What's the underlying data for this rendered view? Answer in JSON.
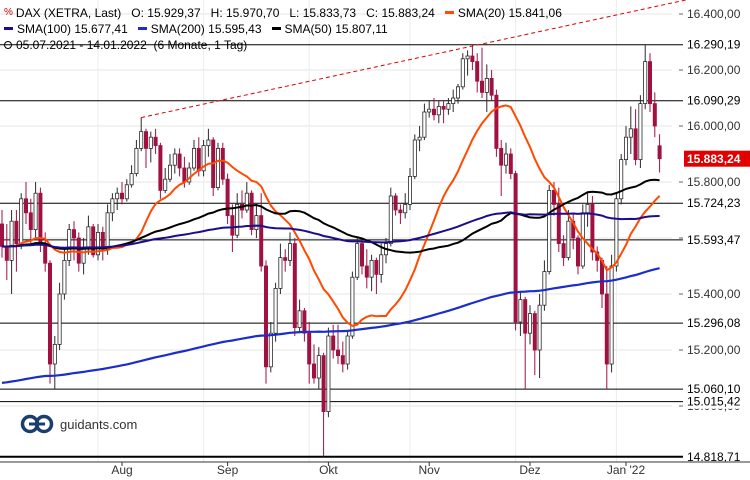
{
  "legend": {
    "instrument": "DAX (XETRA, Last)",
    "open": "O: 15.929,37",
    "high": "H: 15.970,70",
    "low": "L: 15.833,73",
    "close": "C: 15.883,24",
    "sma20_label": "SMA(20)",
    "sma20_value": "15.841,06",
    "sma100_label": "SMA(100)",
    "sma100_value": "15.677,41",
    "sma200_label": "SMA(200)",
    "sma200_value": "15.595,43",
    "sma50_label": "SMA(50)",
    "sma50_value": "15.807,11",
    "period": "05.07.2021 - 14.01.2022",
    "range": "(6 Monate, 1 Tag)"
  },
  "brand": {
    "name": "guidants.com"
  },
  "colors": {
    "sma20": "#ff4a00",
    "sma50": "#000000",
    "sma100": "#1c0d8c",
    "sma200": "#1a2ecc",
    "up_candle": "#2a2a2a",
    "down_candle": "#a01040",
    "last_price_badge": "#e00000",
    "trendline": "#e00000"
  },
  "chart_data": {
    "type": "candlestick",
    "title": "DAX (XETRA, Last)",
    "ylim": [
      14800,
      16450
    ],
    "y_ticks": [
      "16.400,00",
      "16.200,00",
      "16.000,00",
      "15.800,00",
      "15.600,00",
      "15.400,00",
      "15.200,00",
      "15.000,00"
    ],
    "x_ticks": [
      "Aug",
      "Sep",
      "Okt",
      "Nov",
      "Dez",
      "Jan '22"
    ],
    "horizontal_levels": [
      {
        "label": "16.290,19",
        "value": 16290.19
      },
      {
        "label": "16.090,29",
        "value": 16090.29
      },
      {
        "label": "15.724,23",
        "value": 15724.23
      },
      {
        "label": "15.593,47",
        "value": 15593.47
      },
      {
        "label": "15.296,08",
        "value": 15296.08
      },
      {
        "label": "15.060,10",
        "value": 15060.1
      },
      {
        "label": "15.015,42",
        "value": 15015.42
      },
      {
        "label": "14.818,71",
        "value": 14818.71
      }
    ],
    "last_price": {
      "label": "15.883,24",
      "value": 15883.24
    },
    "trendline": {
      "from": {
        "date": "2021-08-13",
        "value": 16030
      },
      "to": {
        "date": "2022-01-14",
        "value": 16450
      }
    },
    "candles": [
      {
        "date": "2021-07-05",
        "o": 15650,
        "h": 15700,
        "l": 15530,
        "c": 15570
      },
      {
        "date": "2021-07-06",
        "o": 15570,
        "h": 15650,
        "l": 15450,
        "c": 15520
      },
      {
        "date": "2021-07-07",
        "o": 15520,
        "h": 15700,
        "l": 15400,
        "c": 15660
      },
      {
        "date": "2021-07-08",
        "o": 15660,
        "h": 15700,
        "l": 15480,
        "c": 15580
      },
      {
        "date": "2021-07-09",
        "o": 15580,
        "h": 15760,
        "l": 15560,
        "c": 15740
      },
      {
        "date": "2021-07-12",
        "o": 15740,
        "h": 15800,
        "l": 15650,
        "c": 15690
      },
      {
        "date": "2021-07-13",
        "o": 15690,
        "h": 15740,
        "l": 15580,
        "c": 15630
      },
      {
        "date": "2021-07-14",
        "o": 15630,
        "h": 15800,
        "l": 15600,
        "c": 15760
      },
      {
        "date": "2021-07-15",
        "o": 15760,
        "h": 15780,
        "l": 15550,
        "c": 15580
      },
      {
        "date": "2021-07-16",
        "o": 15580,
        "h": 15620,
        "l": 15480,
        "c": 15510
      },
      {
        "date": "2021-07-19",
        "o": 15510,
        "h": 15520,
        "l": 15080,
        "c": 15150
      },
      {
        "date": "2021-07-20",
        "o": 15150,
        "h": 15250,
        "l": 15060,
        "c": 15220
      },
      {
        "date": "2021-07-21",
        "o": 15220,
        "h": 15440,
        "l": 15200,
        "c": 15400
      },
      {
        "date": "2021-07-22",
        "o": 15400,
        "h": 15560,
        "l": 15380,
        "c": 15520
      },
      {
        "date": "2021-07-23",
        "o": 15520,
        "h": 15650,
        "l": 15500,
        "c": 15630
      },
      {
        "date": "2021-07-26",
        "o": 15630,
        "h": 15660,
        "l": 15520,
        "c": 15600
      },
      {
        "date": "2021-07-27",
        "o": 15600,
        "h": 15620,
        "l": 15480,
        "c": 15510
      },
      {
        "date": "2021-07-28",
        "o": 15510,
        "h": 15600,
        "l": 15470,
        "c": 15560
      },
      {
        "date": "2021-07-29",
        "o": 15560,
        "h": 15680,
        "l": 15540,
        "c": 15640
      },
      {
        "date": "2021-07-30",
        "o": 15640,
        "h": 15650,
        "l": 15530,
        "c": 15540
      },
      {
        "date": "2021-08-02",
        "o": 15540,
        "h": 15650,
        "l": 15520,
        "c": 15620
      },
      {
        "date": "2021-08-03",
        "o": 15620,
        "h": 15640,
        "l": 15520,
        "c": 15560
      },
      {
        "date": "2021-08-04",
        "o": 15560,
        "h": 15720,
        "l": 15540,
        "c": 15690
      },
      {
        "date": "2021-08-05",
        "o": 15690,
        "h": 15760,
        "l": 15660,
        "c": 15740
      },
      {
        "date": "2021-08-06",
        "o": 15740,
        "h": 15780,
        "l": 15700,
        "c": 15760
      },
      {
        "date": "2021-08-09",
        "o": 15760,
        "h": 15800,
        "l": 15720,
        "c": 15740
      },
      {
        "date": "2021-08-10",
        "o": 15740,
        "h": 15810,
        "l": 15730,
        "c": 15790
      },
      {
        "date": "2021-08-11",
        "o": 15790,
        "h": 15860,
        "l": 15780,
        "c": 15830
      },
      {
        "date": "2021-08-12",
        "o": 15830,
        "h": 15950,
        "l": 15820,
        "c": 15920
      },
      {
        "date": "2021-08-13",
        "o": 15920,
        "h": 16030,
        "l": 15910,
        "c": 15980
      },
      {
        "date": "2021-08-16",
        "o": 15980,
        "h": 15990,
        "l": 15850,
        "c": 15920
      },
      {
        "date": "2021-08-17",
        "o": 15920,
        "h": 15980,
        "l": 15870,
        "c": 15960
      },
      {
        "date": "2021-08-18",
        "o": 15960,
        "h": 15990,
        "l": 15900,
        "c": 15930
      },
      {
        "date": "2021-08-19",
        "o": 15930,
        "h": 15940,
        "l": 15740,
        "c": 15770
      },
      {
        "date": "2021-08-20",
        "o": 15770,
        "h": 15850,
        "l": 15760,
        "c": 15810
      },
      {
        "date": "2021-08-23",
        "o": 15810,
        "h": 15900,
        "l": 15800,
        "c": 15860
      },
      {
        "date": "2021-08-24",
        "o": 15860,
        "h": 15920,
        "l": 15830,
        "c": 15900
      },
      {
        "date": "2021-08-25",
        "o": 15900,
        "h": 15920,
        "l": 15820,
        "c": 15850
      },
      {
        "date": "2021-08-26",
        "o": 15850,
        "h": 15890,
        "l": 15780,
        "c": 15800
      },
      {
        "date": "2021-08-27",
        "o": 15800,
        "h": 15870,
        "l": 15790,
        "c": 15850
      },
      {
        "date": "2021-08-30",
        "o": 15850,
        "h": 15950,
        "l": 15840,
        "c": 15920
      },
      {
        "date": "2021-08-31",
        "o": 15920,
        "h": 15960,
        "l": 15820,
        "c": 15840
      },
      {
        "date": "2021-09-01",
        "o": 15840,
        "h": 15950,
        "l": 15820,
        "c": 15930
      },
      {
        "date": "2021-09-02",
        "o": 15930,
        "h": 15990,
        "l": 15890,
        "c": 15950
      },
      {
        "date": "2021-09-03",
        "o": 15950,
        "h": 15960,
        "l": 15750,
        "c": 15780
      },
      {
        "date": "2021-09-06",
        "o": 15780,
        "h": 15940,
        "l": 15770,
        "c": 15920
      },
      {
        "date": "2021-09-07",
        "o": 15920,
        "h": 15940,
        "l": 15790,
        "c": 15810
      },
      {
        "date": "2021-09-08",
        "o": 15810,
        "h": 15830,
        "l": 15650,
        "c": 15680
      },
      {
        "date": "2021-09-09",
        "o": 15680,
        "h": 15720,
        "l": 15550,
        "c": 15610
      },
      {
        "date": "2021-09-10",
        "o": 15610,
        "h": 15760,
        "l": 15600,
        "c": 15720
      },
      {
        "date": "2021-09-13",
        "o": 15720,
        "h": 15770,
        "l": 15670,
        "c": 15700
      },
      {
        "date": "2021-09-14",
        "o": 15700,
        "h": 15800,
        "l": 15690,
        "c": 15760
      },
      {
        "date": "2021-09-15",
        "o": 15760,
        "h": 15770,
        "l": 15610,
        "c": 15630
      },
      {
        "date": "2021-09-16",
        "o": 15630,
        "h": 15720,
        "l": 15600,
        "c": 15680
      },
      {
        "date": "2021-09-17",
        "o": 15680,
        "h": 15760,
        "l": 15480,
        "c": 15500
      },
      {
        "date": "2021-09-20",
        "o": 15500,
        "h": 15520,
        "l": 15080,
        "c": 15140
      },
      {
        "date": "2021-09-21",
        "o": 15140,
        "h": 15300,
        "l": 15120,
        "c": 15260
      },
      {
        "date": "2021-09-22",
        "o": 15260,
        "h": 15440,
        "l": 15230,
        "c": 15420
      },
      {
        "date": "2021-09-23",
        "o": 15420,
        "h": 15580,
        "l": 15400,
        "c": 15530
      },
      {
        "date": "2021-09-24",
        "o": 15530,
        "h": 15560,
        "l": 15480,
        "c": 15520
      },
      {
        "date": "2021-09-27",
        "o": 15520,
        "h": 15620,
        "l": 15500,
        "c": 15580
      },
      {
        "date": "2021-09-28",
        "o": 15580,
        "h": 15600,
        "l": 15250,
        "c": 15280
      },
      {
        "date": "2021-09-29",
        "o": 15280,
        "h": 15380,
        "l": 15260,
        "c": 15340
      },
      {
        "date": "2021-09-30",
        "o": 15340,
        "h": 15350,
        "l": 15230,
        "c": 15260
      },
      {
        "date": "2021-10-01",
        "o": 15260,
        "h": 15300,
        "l": 15080,
        "c": 15150
      },
      {
        "date": "2021-10-04",
        "o": 15150,
        "h": 15220,
        "l": 15080,
        "c": 15100
      },
      {
        "date": "2021-10-05",
        "o": 15100,
        "h": 15210,
        "l": 15060,
        "c": 15180
      },
      {
        "date": "2021-10-06",
        "o": 15180,
        "h": 15190,
        "l": 14820,
        "c": 14980
      },
      {
        "date": "2021-10-07",
        "o": 14980,
        "h": 15280,
        "l": 14960,
        "c": 15250
      },
      {
        "date": "2021-10-08",
        "o": 15250,
        "h": 15290,
        "l": 15170,
        "c": 15200
      },
      {
        "date": "2021-10-11",
        "o": 15200,
        "h": 15290,
        "l": 15150,
        "c": 15180
      },
      {
        "date": "2021-10-12",
        "o": 15180,
        "h": 15230,
        "l": 15120,
        "c": 15150
      },
      {
        "date": "2021-10-13",
        "o": 15150,
        "h": 15270,
        "l": 15130,
        "c": 15250
      },
      {
        "date": "2021-10-14",
        "o": 15250,
        "h": 15480,
        "l": 15240,
        "c": 15460
      },
      {
        "date": "2021-10-15",
        "o": 15460,
        "h": 15600,
        "l": 15450,
        "c": 15580
      },
      {
        "date": "2021-10-18",
        "o": 15580,
        "h": 15600,
        "l": 15470,
        "c": 15500
      },
      {
        "date": "2021-10-19",
        "o": 15500,
        "h": 15560,
        "l": 15420,
        "c": 15460
      },
      {
        "date": "2021-10-20",
        "o": 15460,
        "h": 15540,
        "l": 15410,
        "c": 15520
      },
      {
        "date": "2021-10-21",
        "o": 15520,
        "h": 15530,
        "l": 15400,
        "c": 15470
      },
      {
        "date": "2021-10-22",
        "o": 15470,
        "h": 15580,
        "l": 15440,
        "c": 15540
      },
      {
        "date": "2021-10-25",
        "o": 15540,
        "h": 15600,
        "l": 15510,
        "c": 15580
      },
      {
        "date": "2021-10-26",
        "o": 15580,
        "h": 15780,
        "l": 15570,
        "c": 15750
      },
      {
        "date": "2021-10-27",
        "o": 15750,
        "h": 15760,
        "l": 15680,
        "c": 15700
      },
      {
        "date": "2021-10-28",
        "o": 15700,
        "h": 15720,
        "l": 15650,
        "c": 15690
      },
      {
        "date": "2021-10-29",
        "o": 15690,
        "h": 15760,
        "l": 15670,
        "c": 15720
      },
      {
        "date": "2021-11-01",
        "o": 15720,
        "h": 15850,
        "l": 15700,
        "c": 15820
      },
      {
        "date": "2021-11-02",
        "o": 15820,
        "h": 15970,
        "l": 15810,
        "c": 15950
      },
      {
        "date": "2021-11-03",
        "o": 15950,
        "h": 16000,
        "l": 15910,
        "c": 15960
      },
      {
        "date": "2021-11-04",
        "o": 15960,
        "h": 16080,
        "l": 15950,
        "c": 16050
      },
      {
        "date": "2021-11-05",
        "o": 16050,
        "h": 16090,
        "l": 16030,
        "c": 16060
      },
      {
        "date": "2021-11-08",
        "o": 16060,
        "h": 16100,
        "l": 16020,
        "c": 16040
      },
      {
        "date": "2021-11-09",
        "o": 16040,
        "h": 16090,
        "l": 16010,
        "c": 16070
      },
      {
        "date": "2021-11-10",
        "o": 16070,
        "h": 16090,
        "l": 16010,
        "c": 16060
      },
      {
        "date": "2021-11-11",
        "o": 16060,
        "h": 16100,
        "l": 16040,
        "c": 16080
      },
      {
        "date": "2021-11-12",
        "o": 16080,
        "h": 16130,
        "l": 16050,
        "c": 16100
      },
      {
        "date": "2021-11-15",
        "o": 16100,
        "h": 16150,
        "l": 16080,
        "c": 16140
      },
      {
        "date": "2021-11-16",
        "o": 16140,
        "h": 16260,
        "l": 16130,
        "c": 16240
      },
      {
        "date": "2021-11-17",
        "o": 16240,
        "h": 16270,
        "l": 16180,
        "c": 16250
      },
      {
        "date": "2021-11-18",
        "o": 16250,
        "h": 16290,
        "l": 16200,
        "c": 16230
      },
      {
        "date": "2021-11-19",
        "o": 16230,
        "h": 16260,
        "l": 16120,
        "c": 16160
      },
      {
        "date": "2021-11-22",
        "o": 16160,
        "h": 16280,
        "l": 16100,
        "c": 16120
      },
      {
        "date": "2021-11-23",
        "o": 16120,
        "h": 16220,
        "l": 16050,
        "c": 16170
      },
      {
        "date": "2021-11-24",
        "o": 16170,
        "h": 16200,
        "l": 16090,
        "c": 16110
      },
      {
        "date": "2021-11-25",
        "o": 16110,
        "h": 16130,
        "l": 15890,
        "c": 15920
      },
      {
        "date": "2021-11-26",
        "o": 15920,
        "h": 15950,
        "l": 15750,
        "c": 15860
      },
      {
        "date": "2021-11-29",
        "o": 15860,
        "h": 15940,
        "l": 15830,
        "c": 15900
      },
      {
        "date": "2021-11-30",
        "o": 15900,
        "h": 15920,
        "l": 15810,
        "c": 15830
      },
      {
        "date": "2021-12-01",
        "o": 15830,
        "h": 15840,
        "l": 15270,
        "c": 15300
      },
      {
        "date": "2021-12-02",
        "o": 15300,
        "h": 15410,
        "l": 15250,
        "c": 15380
      },
      {
        "date": "2021-12-03",
        "o": 15380,
        "h": 15390,
        "l": 15060,
        "c": 15260
      },
      {
        "date": "2021-12-06",
        "o": 15260,
        "h": 15360,
        "l": 15220,
        "c": 15330
      },
      {
        "date": "2021-12-07",
        "o": 15330,
        "h": 15340,
        "l": 15110,
        "c": 15200
      },
      {
        "date": "2021-12-08",
        "o": 15200,
        "h": 15400,
        "l": 15100,
        "c": 15360
      },
      {
        "date": "2021-12-09",
        "o": 15360,
        "h": 15520,
        "l": 15340,
        "c": 15480
      },
      {
        "date": "2021-12-10",
        "o": 15480,
        "h": 15790,
        "l": 15470,
        "c": 15770
      },
      {
        "date": "2021-12-13",
        "o": 15770,
        "h": 15800,
        "l": 15680,
        "c": 15720
      },
      {
        "date": "2021-12-14",
        "o": 15720,
        "h": 15780,
        "l": 15550,
        "c": 15580
      },
      {
        "date": "2021-12-15",
        "o": 15580,
        "h": 15610,
        "l": 15500,
        "c": 15530
      },
      {
        "date": "2021-12-16",
        "o": 15530,
        "h": 15700,
        "l": 15520,
        "c": 15660
      },
      {
        "date": "2021-12-17",
        "o": 15660,
        "h": 15690,
        "l": 15560,
        "c": 15600
      },
      {
        "date": "2021-12-20",
        "o": 15600,
        "h": 15610,
        "l": 15470,
        "c": 15500
      },
      {
        "date": "2021-12-21",
        "o": 15500,
        "h": 15720,
        "l": 15490,
        "c": 15690
      },
      {
        "date": "2021-12-22",
        "o": 15690,
        "h": 15760,
        "l": 15640,
        "c": 15720
      },
      {
        "date": "2021-12-23",
        "o": 15720,
        "h": 15750,
        "l": 15520,
        "c": 15550
      },
      {
        "date": "2021-12-27",
        "o": 15550,
        "h": 15570,
        "l": 15480,
        "c": 15520
      },
      {
        "date": "2021-12-28",
        "o": 15520,
        "h": 15530,
        "l": 15350,
        "c": 15400
      },
      {
        "date": "2021-12-29",
        "o": 15400,
        "h": 15500,
        "l": 15060,
        "c": 15150
      },
      {
        "date": "2021-12-30",
        "o": 15150,
        "h": 15540,
        "l": 15120,
        "c": 15500
      },
      {
        "date": "2022-01-03",
        "o": 15500,
        "h": 15760,
        "l": 15480,
        "c": 15740
      },
      {
        "date": "2022-01-04",
        "o": 15740,
        "h": 15900,
        "l": 15720,
        "c": 15880
      },
      {
        "date": "2022-01-05",
        "o": 15880,
        "h": 16000,
        "l": 15860,
        "c": 15960
      },
      {
        "date": "2022-01-06",
        "o": 15960,
        "h": 16070,
        "l": 15900,
        "c": 15990
      },
      {
        "date": "2022-01-07",
        "o": 15990,
        "h": 16060,
        "l": 15860,
        "c": 15880
      },
      {
        "date": "2022-01-10",
        "o": 15880,
        "h": 16110,
        "l": 15850,
        "c": 16080
      },
      {
        "date": "2022-01-11",
        "o": 16080,
        "h": 16290,
        "l": 16060,
        "c": 16230
      },
      {
        "date": "2022-01-12",
        "o": 16230,
        "h": 16260,
        "l": 16050,
        "c": 16080
      },
      {
        "date": "2022-01-13",
        "o": 16080,
        "h": 16120,
        "l": 15960,
        "c": 16000
      },
      {
        "date": "2022-01-14",
        "o": 15929.37,
        "h": 15970.7,
        "l": 15833.73,
        "c": 15883.24
      }
    ]
  }
}
